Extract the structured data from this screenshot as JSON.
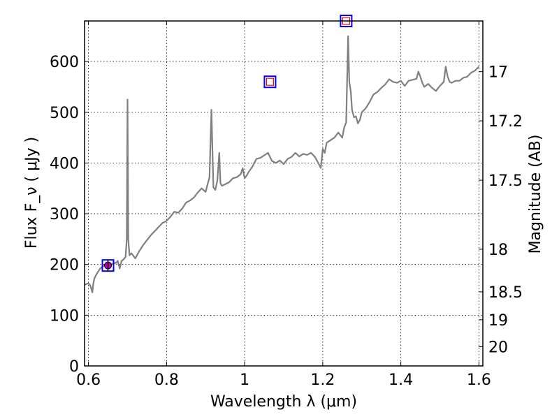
{
  "chart_data": {
    "type": "line",
    "xlabel": "Wavelength  λ (μm)",
    "ylabel": "Flux  F_ν  ( μJy )",
    "ylabel_right": "Magnitude (AB)",
    "xlim": [
      0.59,
      1.61
    ],
    "ylim": [
      0,
      680
    ],
    "grid": true,
    "x_ticks": [
      0.6,
      0.8,
      1.0,
      1.2,
      1.4,
      1.6
    ],
    "x_tick_labels": [
      "0.6",
      "0.8",
      "1",
      "1.2",
      "1.4",
      "1.6"
    ],
    "y_ticks": [
      0,
      100,
      200,
      300,
      400,
      500,
      600
    ],
    "y_tick_labels": [
      "0",
      "100",
      "200",
      "300",
      "400",
      "500",
      "600"
    ],
    "right_axis": {
      "labels": [
        "17",
        "17.2",
        "17.5",
        "18",
        "18.5",
        "19",
        "20"
      ],
      "flux_positions": [
        580,
        483,
        366,
        230,
        146,
        91,
        38
      ]
    },
    "spectrum_color": "#808080",
    "spectrum": {
      "x": [
        0.59,
        0.6,
        0.605,
        0.61,
        0.612,
        0.615,
        0.62,
        0.63,
        0.64,
        0.65,
        0.66,
        0.67,
        0.675,
        0.68,
        0.685,
        0.69,
        0.695,
        0.698,
        0.7,
        0.702,
        0.705,
        0.71,
        0.72,
        0.73,
        0.74,
        0.75,
        0.76,
        0.77,
        0.78,
        0.79,
        0.8,
        0.81,
        0.82,
        0.83,
        0.84,
        0.85,
        0.86,
        0.87,
        0.88,
        0.89,
        0.9,
        0.91,
        0.915,
        0.92,
        0.925,
        0.93,
        0.935,
        0.938,
        0.942,
        0.95,
        0.96,
        0.97,
        0.98,
        0.99,
        0.995,
        1.0,
        1.005,
        1.01,
        1.02,
        1.03,
        1.04,
        1.05,
        1.06,
        1.07,
        1.08,
        1.09,
        1.1,
        1.11,
        1.12,
        1.13,
        1.14,
        1.15,
        1.16,
        1.17,
        1.18,
        1.19,
        1.195,
        1.2,
        1.205,
        1.21,
        1.22,
        1.23,
        1.24,
        1.25,
        1.255,
        1.26,
        1.265,
        1.268,
        1.272,
        1.275,
        1.28,
        1.285,
        1.29,
        1.295,
        1.3,
        1.31,
        1.32,
        1.33,
        1.34,
        1.35,
        1.36,
        1.37,
        1.38,
        1.39,
        1.4,
        1.41,
        1.42,
        1.43,
        1.44,
        1.445,
        1.45,
        1.455,
        1.46,
        1.47,
        1.48,
        1.49,
        1.5,
        1.51,
        1.515,
        1.52,
        1.525,
        1.53,
        1.54,
        1.55,
        1.56,
        1.57,
        1.58,
        1.59,
        1.6
      ],
      "y": [
        160,
        163,
        158,
        145,
        160,
        172,
        180,
        192,
        198,
        203,
        201,
        203,
        207,
        192,
        207,
        210,
        215,
        250,
        525,
        250,
        218,
        222,
        212,
        226,
        238,
        248,
        258,
        266,
        274,
        282,
        286,
        294,
        304,
        302,
        310,
        322,
        326,
        332,
        342,
        350,
        343,
        372,
        505,
        352,
        347,
        365,
        420,
        360,
        355,
        358,
        362,
        370,
        372,
        378,
        390,
        370,
        375,
        382,
        393,
        408,
        410,
        415,
        420,
        404,
        400,
        405,
        398,
        408,
        412,
        420,
        413,
        418,
        416,
        420,
        412,
        398,
        390,
        428,
        420,
        440,
        445,
        450,
        460,
        450,
        470,
        480,
        650,
        560,
        540,
        505,
        490,
        492,
        478,
        485,
        500,
        508,
        520,
        535,
        540,
        548,
        555,
        565,
        560,
        558,
        562,
        552,
        562,
        564,
        566,
        580,
        570,
        558,
        550,
        556,
        548,
        542,
        552,
        560,
        590,
        570,
        560,
        558,
        562,
        562,
        568,
        570,
        578,
        582,
        590
      ]
    },
    "photometry": [
      {
        "x": 0.65,
        "y": 198,
        "y_err": 12,
        "filled": true
      },
      {
        "x": 1.065,
        "y": 560,
        "y_err": 0,
        "filled": false
      },
      {
        "x": 1.26,
        "y": 680,
        "y_err": 0,
        "filled": false
      }
    ],
    "photometry_colors": {
      "box_outline": "#0000ff",
      "model_point": "#ff0000",
      "filled_point": "#bf00bf"
    }
  }
}
